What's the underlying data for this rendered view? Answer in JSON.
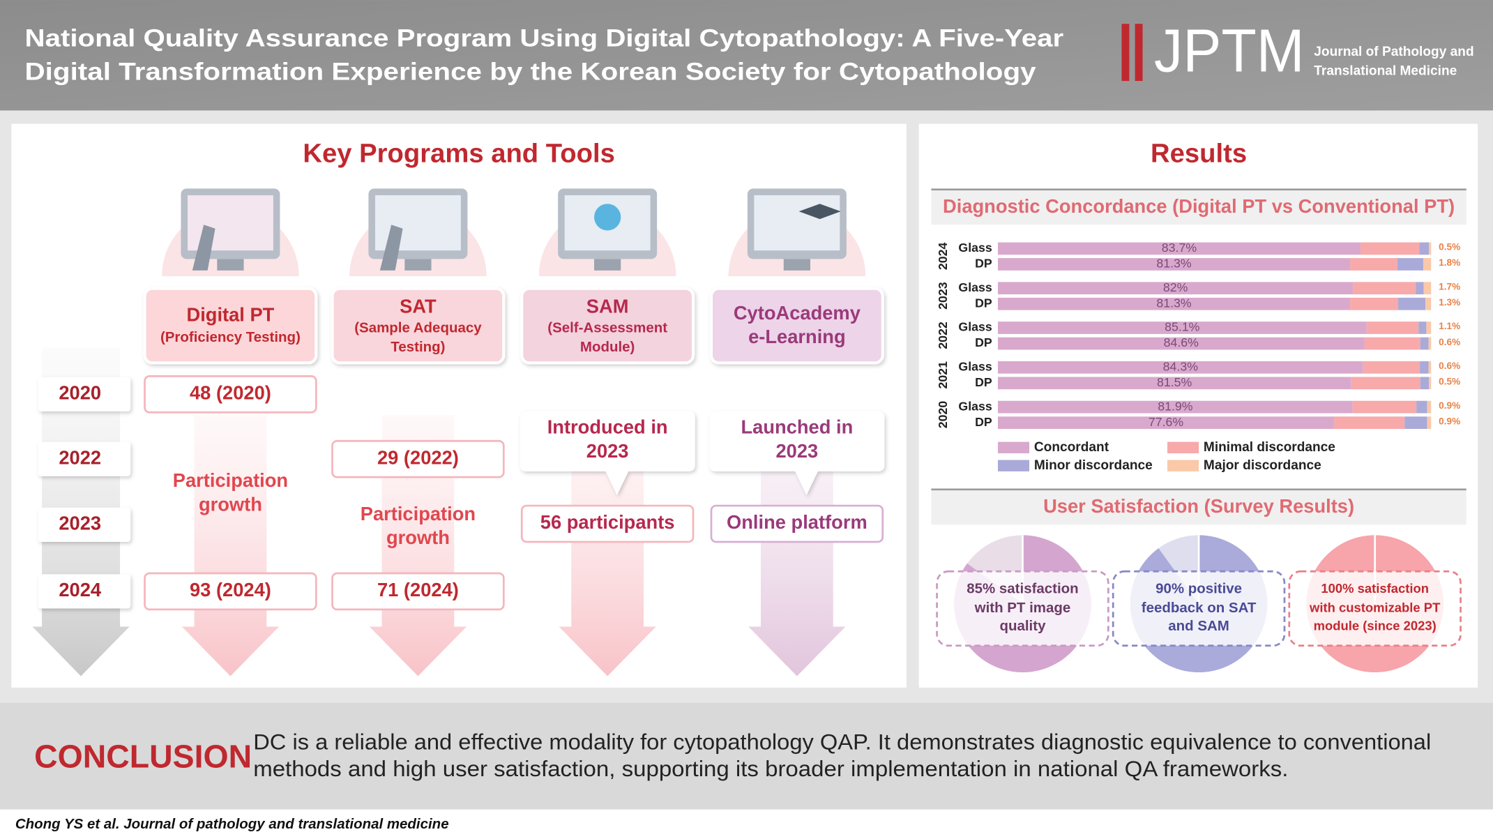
{
  "header": {
    "title_lines": [
      "National Quality Assurance Program Using Digital Cytopathology: A Five-Year",
      "Digital Transformation Experience by the Korean Society for Cytopathology"
    ],
    "logo": "JPTM",
    "journal_lines": [
      "Journal of Pathology and",
      "Translational Medicine"
    ]
  },
  "programs": {
    "title": "Key Programs and Tools",
    "years": [
      "2020",
      "2022",
      "2023",
      "2024"
    ],
    "items": [
      {
        "name_lines": [
          "Digital PT",
          "(Proficiency Testing)"
        ],
        "first": "48 (2020)",
        "middle_lines": [
          "Participation",
          "growth"
        ],
        "last": "93 (2024)"
      },
      {
        "name_lines": [
          "SAT",
          "(Sample Adequacy",
          "Testing)"
        ],
        "first": "29 (2022)",
        "middle_lines": [
          "Participation",
          "growth"
        ],
        "last": "71 (2024)"
      },
      {
        "name_lines": [
          "SAM",
          "(Self-Assessment",
          "Module)"
        ],
        "callout_lines": [
          "Introduced in",
          "2023"
        ],
        "box": "56 participants"
      },
      {
        "name_lines": [
          "CytoAcademy",
          "e-Learning"
        ],
        "callout_lines": [
          "Launched in",
          "2023"
        ],
        "box": "Online platform"
      }
    ]
  },
  "results": {
    "title": "Results",
    "satisfaction_title": "User Satisfaction (Survey Results)",
    "satisfaction": [
      {
        "value": 85,
        "label_lines": [
          "85% satisfaction",
          "with PT image",
          "quality"
        ],
        "color": "#d4a6cf",
        "rest_color": "#e9dde8",
        "text_color": "#6a3a66",
        "border": "#c99ac2"
      },
      {
        "value": 90,
        "label_lines": [
          "90% positive",
          "feedback on SAT",
          "and SAM"
        ],
        "color": "#aaaadb",
        "rest_color": "#dedeee",
        "text_color": "#4a4a96",
        "border": "#8888c6"
      },
      {
        "value": 100,
        "label_lines": [
          "100% satisfaction",
          "with customizable PT",
          "module (since 2023)"
        ],
        "color": "#f7a4ab",
        "rest_color": "#fde2e4",
        "text_color": "#c0282f",
        "border": "#e88088"
      }
    ]
  },
  "chart_data": {
    "type": "stacked-bar",
    "orientation": "horizontal",
    "title": "Diagnostic Concordance (Digital PT vs Conventional PT)",
    "groups": [
      "2024",
      "2023",
      "2022",
      "2021",
      "2020"
    ],
    "categories": [
      "Glass",
      "DP",
      "Glass",
      "DP",
      "Glass",
      "DP",
      "Glass",
      "DP",
      "Glass",
      "DP"
    ],
    "xlim": [
      0,
      100
    ],
    "series": [
      {
        "name": "Concordant",
        "color": "#d9a9cd",
        "values": [
          83.7,
          81.3,
          82,
          81.3,
          85.1,
          84.6,
          84.3,
          81.5,
          81.9,
          77.6
        ],
        "value_labels": [
          "83.7%",
          "81.3%",
          "82%",
          "81.3%",
          "85.1%",
          "84.6%",
          "84.3%",
          "81.5%",
          "81.9%",
          "77.6%"
        ]
      },
      {
        "name": "Minimal discordance",
        "color": "#f8a9aa",
        "values": [
          13.6,
          10.9,
          14.5,
          11.1,
          12.0,
          12.9,
          13.1,
          16.0,
          14.7,
          16.3
        ]
      },
      {
        "name": "Minor discordance",
        "color": "#aaaad9",
        "values": [
          2.2,
          6.0,
          1.8,
          6.3,
          1.8,
          1.9,
          2.0,
          2.0,
          2.5,
          5.2
        ]
      },
      {
        "name": "Major discordance",
        "color": "#f9c9a9",
        "values": [
          0.5,
          1.8,
          1.7,
          1.3,
          1.1,
          0.6,
          0.6,
          0.5,
          0.9,
          0.9
        ],
        "value_labels": [
          "0.5%",
          "1.8%",
          "1.7%",
          "1.3%",
          "1.1%",
          "0.6%",
          "0.6%",
          "0.5%",
          "0.9%",
          "0.9%"
        ]
      }
    ]
  },
  "conclusion": {
    "label": "CONCLUSION",
    "text_lines": [
      "DC is a reliable and effective modality for cytopathology QAP. It demonstrates diagnostic equivalence to conventional",
      "methods and high user satisfaction, supporting its broader implementation in national QA frameworks."
    ]
  },
  "footer": {
    "citation": "Chong YS et al. Journal of pathology and translational medicine"
  }
}
